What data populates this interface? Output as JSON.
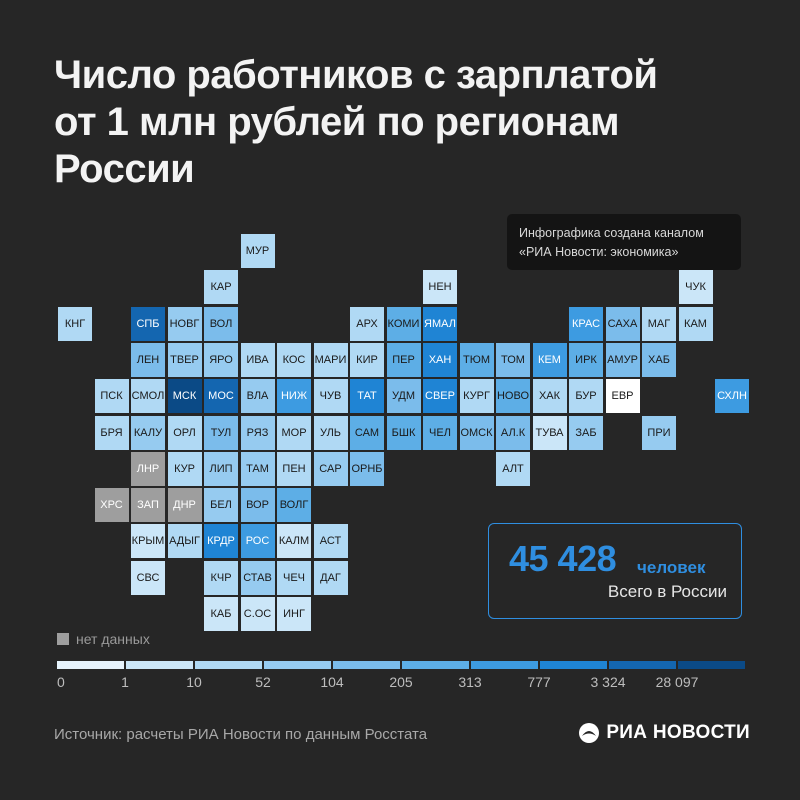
{
  "title": {
    "lines": [
      "Число работников с зарплатой",
      "от 1 млн рублей по регионам",
      "России"
    ]
  },
  "note": {
    "lines": [
      "Инфографика создана каналом",
      "«РИА Новости: экономика»"
    ]
  },
  "total": {
    "value": "45 428",
    "unit": "человек",
    "caption": "Всего в России"
  },
  "legend": {
    "no_data_label": "нет данных",
    "no_data_color": "#9e9e9e",
    "colors": [
      "#e6f3fc",
      "#cbe6f8",
      "#b0d9f4",
      "#96cbf0",
      "#7bbceb",
      "#5daee6",
      "#3d9be1",
      "#1f84d4",
      "#1466b0",
      "#0b4a86"
    ],
    "ticks": [
      "0",
      "1",
      "10",
      "52",
      "104",
      "205",
      "313",
      "777",
      "3 324",
      "28 097"
    ]
  },
  "chart_data": {
    "type": "heatmap",
    "title": "Число работников с зарплатой от 1 млн рублей по регионам России",
    "total": "45 428",
    "value_type": "legend bin index 0–9 (bins bounded by 0, 1, 10, 52, 104, 205, 313, 777, 3 324, 28 097); null = нет данных",
    "rows": [
      [
        "МУР"
      ],
      [
        "КАР",
        "НЕН",
        "ЧУК"
      ],
      [
        "КНГ",
        "СПБ",
        "НОВГ",
        "ВОЛ",
        "АРХ",
        "КОМИ",
        "ЯМАЛ",
        "КРАС",
        "САХА",
        "МАГ",
        "КАМ"
      ],
      [
        "ЛЕН",
        "ТВЕР",
        "ЯРО",
        "ИВА",
        "КОС",
        "МАРИ",
        "КИР",
        "ПЕР",
        "ХАН",
        "ТЮМ",
        "ТОМ",
        "КЕМ",
        "ИРК",
        "АМУР",
        "ХАБ"
      ],
      [
        "ПСК",
        "СМОЛ",
        "МСК",
        "МОС",
        "ВЛА",
        "НИЖ",
        "ЧУВ",
        "ТАТ",
        "УДМ",
        "СВЕР",
        "КУРГ",
        "НОВО",
        "ХАК",
        "БУР",
        "ЕВР",
        "СХЛН"
      ],
      [
        "БРЯ",
        "КАЛУ",
        "ОРЛ",
        "ТУЛ",
        "РЯЗ",
        "МОР",
        "УЛЬ",
        "САМ",
        "БШК",
        "ЧЕЛ",
        "ОМСК",
        "АЛ.К",
        "ТУВА",
        "ЗАБ",
        "ПРИ"
      ],
      [
        "ЛНР",
        "КУР",
        "ЛИП",
        "ТАМ",
        "ПЕН",
        "САР",
        "ОРНБ",
        "АЛТ"
      ],
      [
        "ХРС",
        "ЗАП",
        "ДНР",
        "БЕЛ",
        "ВОР",
        "ВОЛГ"
      ],
      [
        "КРЫМ",
        "АДЫГ",
        "КРДР",
        "РОС",
        "КАЛМ",
        "АСТ"
      ],
      [
        "СВС",
        "КЧР",
        "СТАВ",
        "ЧЕЧ",
        "ДАГ"
      ],
      [
        "КАБ",
        "С.ОС",
        "ИНГ"
      ]
    ],
    "values": [
      [
        2
      ],
      [
        2,
        1,
        1
      ],
      [
        2,
        8,
        3,
        4,
        2,
        5,
        7,
        6,
        4,
        2,
        2
      ],
      [
        4,
        3,
        3,
        2,
        2,
        2,
        2,
        5,
        7,
        5,
        4,
        6,
        5,
        4,
        4
      ],
      [
        2,
        2,
        9,
        8,
        3,
        6,
        2,
        7,
        4,
        7,
        2,
        5,
        2,
        2,
        0,
        6
      ],
      [
        2,
        3,
        2,
        4,
        3,
        2,
        2,
        5,
        5,
        5,
        4,
        4,
        1,
        3,
        3
      ],
      [
        null,
        2,
        3,
        3,
        2,
        3,
        4,
        2
      ],
      [
        null,
        null,
        null,
        3,
        4,
        5
      ],
      [
        1,
        2,
        7,
        6,
        1,
        2
      ],
      [
        1,
        2,
        3,
        2,
        2
      ],
      [
        1,
        1,
        1
      ]
    ]
  }
}
